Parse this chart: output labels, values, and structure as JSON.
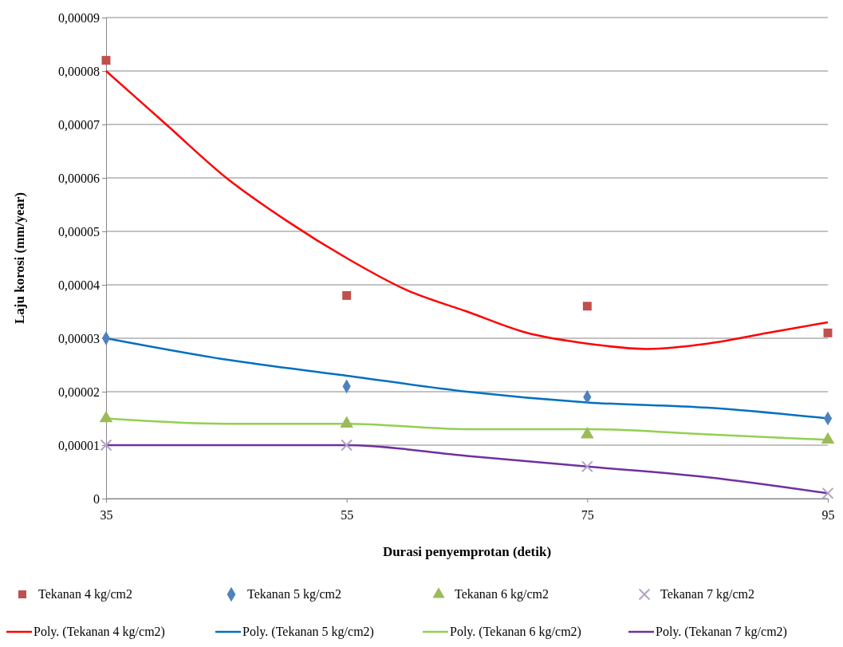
{
  "chart_data": {
    "type": "scatter",
    "xlabel": "Durasi penyemprotan (detik)",
    "ylabel": "Laju korosi (mm/year)",
    "xlim": [
      35,
      95
    ],
    "xticks": [
      35,
      55,
      75,
      95
    ],
    "ylim": [
      0,
      9e-05
    ],
    "yticks": [
      {
        "value": 0,
        "label": "0"
      },
      {
        "value": 1e-05,
        "label": "0,00001"
      },
      {
        "value": 2e-05,
        "label": "0,00002"
      },
      {
        "value": 3e-05,
        "label": "0,00003"
      },
      {
        "value": 4e-05,
        "label": "0,00004"
      },
      {
        "value": 5e-05,
        "label": "0,00005"
      },
      {
        "value": 6e-05,
        "label": "0,00006"
      },
      {
        "value": 7e-05,
        "label": "0,00007"
      },
      {
        "value": 8e-05,
        "label": "0,00008"
      },
      {
        "value": 9e-05,
        "label": "0,00009"
      }
    ],
    "grid": "y",
    "legend": "bottom",
    "series": [
      {
        "name": "Tekanan 4 kg/cm2",
        "marker": "square",
        "color": "#c0504d",
        "x": [
          35,
          55,
          75,
          95
        ],
        "values": [
          8.2e-05,
          3.8e-05,
          3.6e-05,
          3.1e-05
        ]
      },
      {
        "name": "Tekanan 5 kg/cm2",
        "marker": "diamond",
        "color": "#4f81bd",
        "x": [
          35,
          55,
          75,
          95
        ],
        "values": [
          3e-05,
          2.1e-05,
          1.9e-05,
          1.5e-05
        ]
      },
      {
        "name": "Tekanan 6 kg/cm2",
        "marker": "triangle",
        "color": "#9bbb59",
        "x": [
          35,
          55,
          75,
          95
        ],
        "values": [
          1.5e-05,
          1.4e-05,
          1.2e-05,
          1.1e-05
        ]
      },
      {
        "name": "Tekanan 7 kg/cm2",
        "marker": "cross",
        "color": "#b3a2c7",
        "x": [
          35,
          55,
          75,
          95
        ],
        "values": [
          1e-05,
          1e-05,
          6e-06,
          1e-06
        ]
      },
      {
        "name": "Poly. (Tekanan 4 kg/cm2)",
        "type": "line",
        "marker": "none",
        "color": "#ff0000",
        "x": [
          35,
          40,
          45,
          50,
          55,
          60,
          65,
          70,
          75,
          80,
          85,
          90,
          95
        ],
        "values": [
          8e-05,
          7e-05,
          6e-05,
          5.2e-05,
          4.5e-05,
          3.9e-05,
          3.5e-05,
          3.1e-05,
          2.9e-05,
          2.8e-05,
          2.9e-05,
          3.1e-05,
          3.3e-05
        ]
      },
      {
        "name": "Poly. (Tekanan 5 kg/cm2)",
        "type": "line",
        "marker": "none",
        "color": "#0070c0",
        "x": [
          35,
          45,
          55,
          65,
          75,
          85,
          95
        ],
        "values": [
          3e-05,
          2.6e-05,
          2.3e-05,
          2e-05,
          1.8e-05,
          1.7e-05,
          1.5e-05
        ]
      },
      {
        "name": "Poly. (Tekanan 6 kg/cm2)",
        "type": "line",
        "marker": "none",
        "color": "#92d050",
        "x": [
          35,
          45,
          55,
          65,
          75,
          85,
          95
        ],
        "values": [
          1.5e-05,
          1.4e-05,
          1.4e-05,
          1.3e-05,
          1.3e-05,
          1.2e-05,
          1.1e-05
        ]
      },
      {
        "name": "Poly. (Tekanan 7 kg/cm2)",
        "type": "line",
        "marker": "none",
        "color": "#7030a0",
        "x": [
          35,
          45,
          55,
          65,
          75,
          85,
          95
        ],
        "values": [
          1e-05,
          1e-05,
          1e-05,
          8e-06,
          6e-06,
          4e-06,
          1e-06
        ]
      }
    ]
  }
}
